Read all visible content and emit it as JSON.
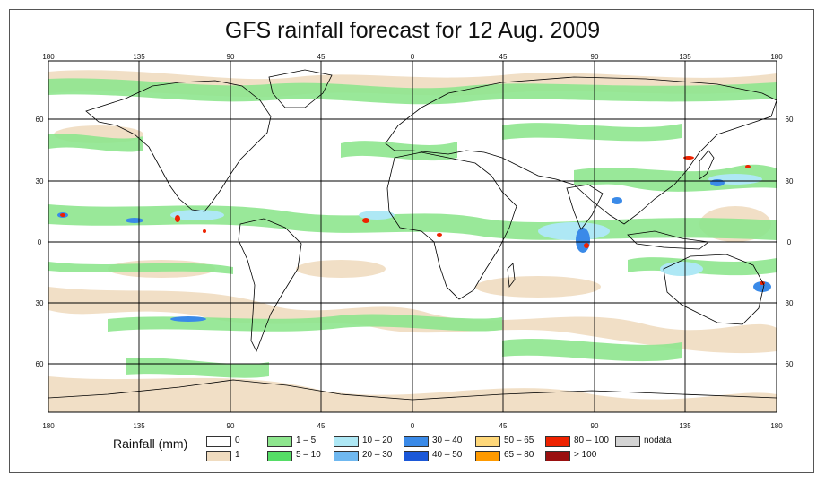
{
  "title": "GFS rainfall forecast for 12 Aug. 2009",
  "axes": {
    "top_ticks": [
      "180",
      "135",
      "90",
      "45",
      "0",
      "45",
      "90",
      "135",
      "180"
    ],
    "bottom_ticks": [
      "180",
      "135",
      "90",
      "45",
      "0",
      "45",
      "90",
      "135",
      "180"
    ],
    "left_ticks": [
      "60",
      "30",
      "0",
      "30",
      "60"
    ],
    "right_ticks": [
      "60",
      "30",
      "0",
      "30",
      "60"
    ]
  },
  "legend": {
    "title": "Rainfall (mm)",
    "items": [
      {
        "label": "0",
        "color": "#ffffff"
      },
      {
        "label": "1",
        "color": "#f0dcc0"
      },
      {
        "label": "1 – 5",
        "color": "#8ee68e"
      },
      {
        "label": "5 – 10",
        "color": "#55dd66"
      },
      {
        "label": "10 – 20",
        "color": "#aee8f5"
      },
      {
        "label": "20 – 30",
        "color": "#6fb8f0"
      },
      {
        "label": "30 – 40",
        "color": "#3a8ae8"
      },
      {
        "label": "40 – 50",
        "color": "#1c58d8"
      },
      {
        "label": "50 – 65",
        "color": "#ffd87a"
      },
      {
        "label": "65 – 80",
        "color": "#ff9a00"
      },
      {
        "label": "80 – 100",
        "color": "#ee2200"
      },
      {
        "label": "> 100",
        "color": "#9a1010"
      },
      {
        "label": "nodata",
        "color": "#d4d4d4"
      }
    ]
  }
}
